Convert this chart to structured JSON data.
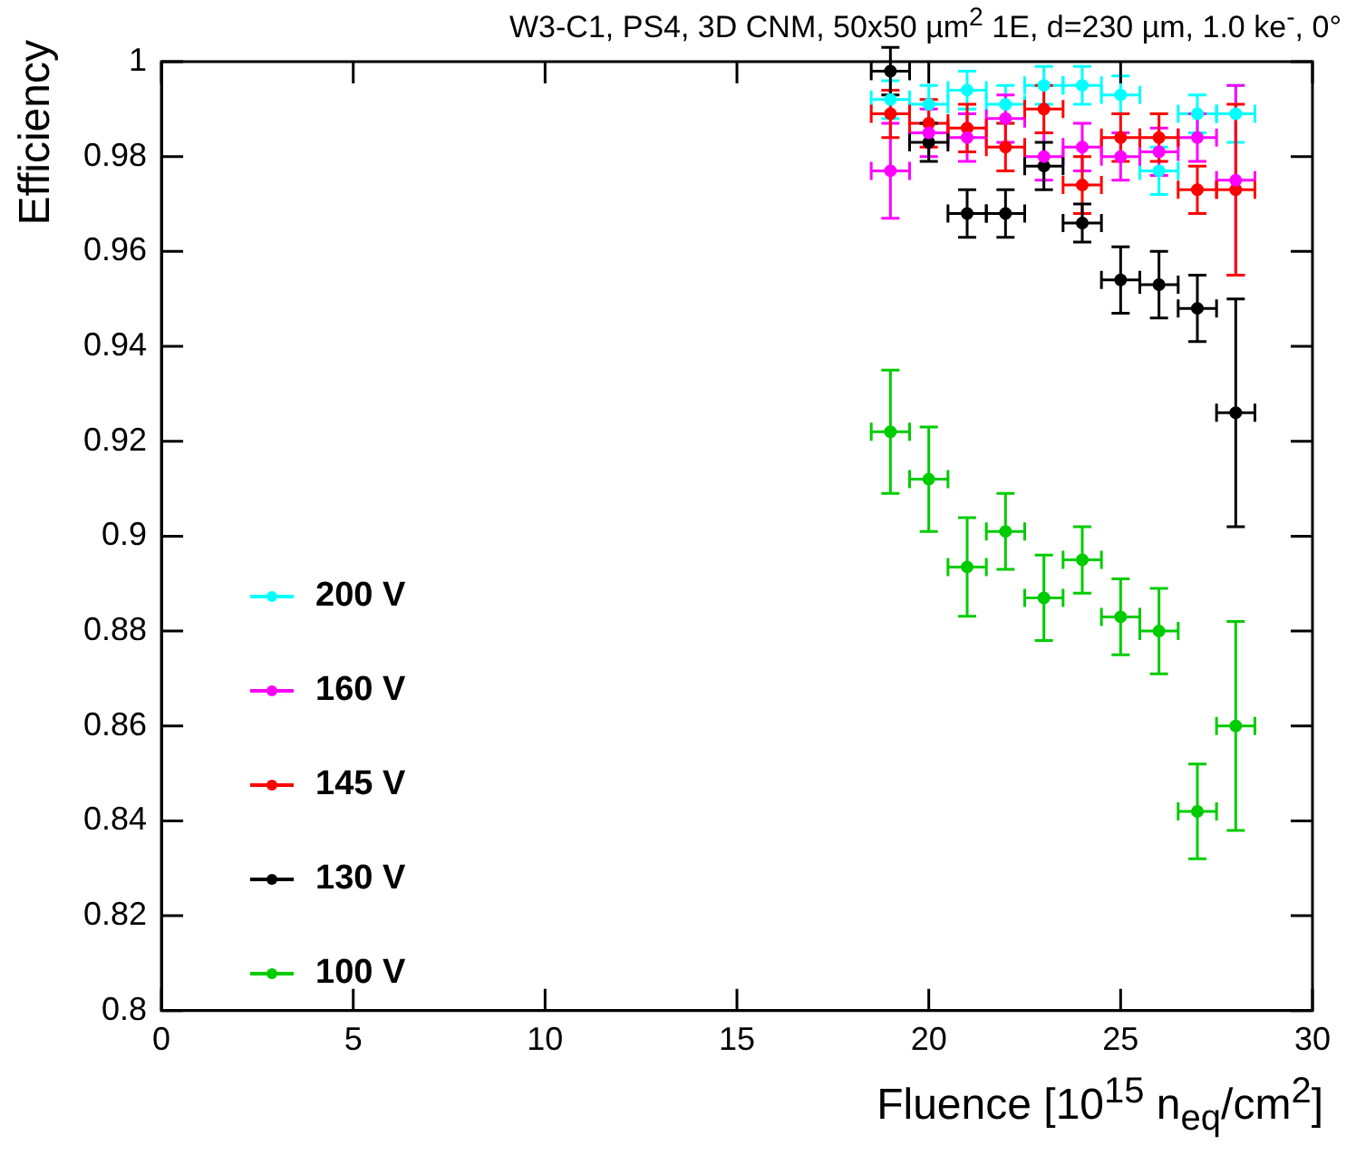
{
  "chart_data": {
    "type": "scatter",
    "title": "W3-C1, PS4, 3D CNM, 50x50 µm$^{2}$ 1E, d=230 µm, 1.0 ke$^{-}$, 0°",
    "xlabel": "Fluence [10$^{15}$ n$_{eq}$/cm$^{2}$]",
    "ylabel": "Efficiency",
    "x": [
      19,
      20,
      21,
      22,
      23,
      24,
      25,
      26,
      27,
      28
    ],
    "xlim": [
      0,
      30
    ],
    "xticks": [
      0,
      5,
      10,
      15,
      20,
      25,
      30
    ],
    "ylim": [
      0.8,
      1
    ],
    "yticks": [
      0.8,
      0.82,
      0.84,
      0.86,
      0.88,
      0.9,
      0.92,
      0.94,
      0.96,
      0.98,
      1
    ],
    "grid": false,
    "legend": "left",
    "marker": "circle",
    "series": [
      {
        "name": "200 V",
        "color": "#00ffff",
        "values": [
          0.992,
          0.991,
          0.994,
          0.991,
          0.995,
          0.995,
          0.993,
          0.977,
          0.989,
          0.989
        ],
        "errors": [
          0.004,
          0.004,
          0.004,
          0.004,
          0.004,
          0.004,
          0.004,
          0.005,
          0.004,
          0.006
        ],
        "xerrors": [
          0.5,
          0.5,
          0.5,
          0.5,
          0.5,
          0.5,
          0.5,
          0.5,
          0.5,
          0.5
        ]
      },
      {
        "name": "160 V",
        "color": "#ff00ff",
        "values": [
          0.977,
          0.985,
          0.984,
          0.988,
          0.98,
          0.982,
          0.98,
          0.981,
          0.984,
          0.975
        ],
        "errors": [
          0.01,
          0.005,
          0.005,
          0.005,
          0.005,
          0.005,
          0.005,
          0.005,
          0.005,
          0.02
        ],
        "xerrors": [
          0.5,
          0.5,
          0.5,
          0.5,
          0.5,
          0.5,
          0.5,
          0.5,
          0.5,
          0.5
        ]
      },
      {
        "name": "145 V",
        "color": "#ff0000",
        "values": [
          0.989,
          0.987,
          0.986,
          0.982,
          0.99,
          0.974,
          0.984,
          0.984,
          0.973,
          0.973
        ],
        "errors": [
          0.005,
          0.005,
          0.005,
          0.005,
          0.005,
          0.006,
          0.005,
          0.005,
          0.005,
          0.018
        ],
        "xerrors": [
          0.5,
          0.5,
          0.5,
          0.5,
          0.5,
          0.5,
          0.5,
          0.5,
          0.5,
          0.5
        ]
      },
      {
        "name": "130 V",
        "color": "#000000",
        "values": [
          0.998,
          0.983,
          0.968,
          0.968,
          0.978,
          0.966,
          0.954,
          0.953,
          0.948,
          0.926
        ],
        "errors": [
          0.005,
          0.004,
          0.005,
          0.005,
          0.005,
          0.004,
          0.007,
          0.007,
          0.007,
          0.024
        ],
        "xerrors": [
          0.5,
          0.5,
          0.5,
          0.5,
          0.5,
          0.5,
          0.5,
          0.5,
          0.5,
          0.5
        ]
      },
      {
        "name": "100 V",
        "color": "#00cc00",
        "values": [
          0.922,
          0.912,
          0.8935,
          0.901,
          0.887,
          0.895,
          0.883,
          0.88,
          0.842,
          0.86
        ],
        "errors": [
          0.013,
          0.011,
          0.0104,
          0.008,
          0.009,
          0.007,
          0.008,
          0.009,
          0.01,
          0.022
        ],
        "xerrors": [
          0.5,
          0.5,
          0.5,
          0.5,
          0.5,
          0.5,
          0.5,
          0.5,
          0.5,
          0.5
        ]
      }
    ]
  }
}
